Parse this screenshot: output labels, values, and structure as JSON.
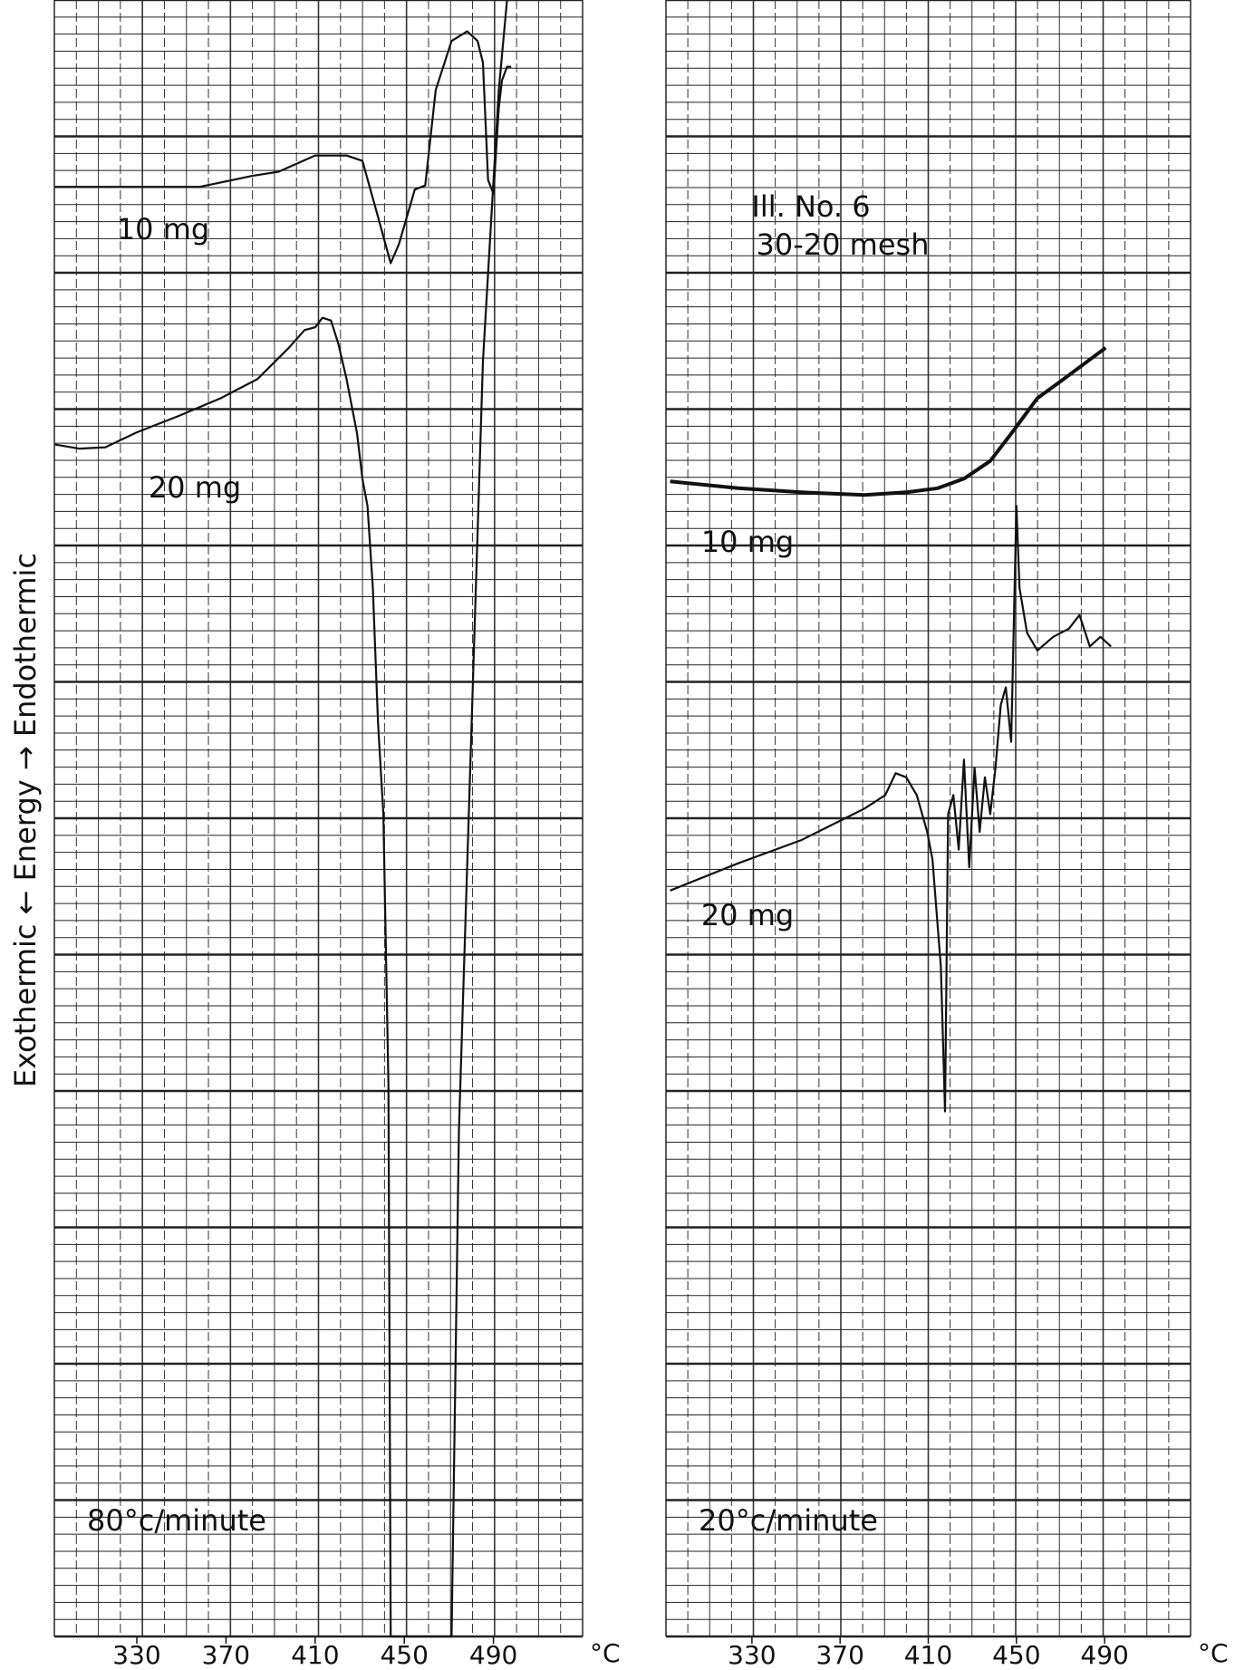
{
  "chart_data": [
    {
      "type": "line",
      "ylabel": "Exothermic ← Energy → Endothermic",
      "xlabel": "°C",
      "xlim": [
        293,
        530
      ],
      "xticks": [
        330,
        370,
        410,
        450,
        490
      ],
      "ylim": [
        0,
        12
      ],
      "annotations": [
        "80°c/minute"
      ],
      "series": [
        {
          "name": "10 mg",
          "color": "#111111",
          "x": [
            293.3,
            358.2,
            381.8,
            393.5,
            410,
            424.1,
            431.2,
            438.2,
            443.9,
            447.6,
            454.7,
            459.4,
            464.1,
            471.2,
            478.2,
            482.9,
            485.3,
            487.6,
            490,
            492.4,
            493.8,
            496.1,
            498
          ],
          "y": [
            10.63,
            10.63,
            10.71,
            10.74,
            10.86,
            10.86,
            10.82,
            10.41,
            10.07,
            10.21,
            10.61,
            10.64,
            11.34,
            11.7,
            11.77,
            11.7,
            11.54,
            10.68,
            10.58,
            11.21,
            11.41,
            11.51,
            11.51
          ]
        },
        {
          "name": "20 mg",
          "color": "#111111",
          "x": [
            293.3,
            304.1,
            315.9,
            330,
            348.8,
            367.6,
            384.1,
            398.2,
            405.3,
            410,
            413.3,
            417.1,
            420.4,
            424.1,
            428.8,
            431.2,
            433.5,
            435.9,
            438.2,
            440.6,
            442.9,
            443.9,
            471.2,
            474.5,
            485.3,
            492.4,
            496.1
          ],
          "y": [
            8.74,
            8.71,
            8.72,
            8.83,
            8.95,
            9.08,
            9.22,
            9.45,
            9.58,
            9.6,
            9.67,
            9.65,
            9.48,
            9.22,
            8.82,
            8.49,
            8.29,
            7.69,
            6.7,
            6.03,
            4.05,
            0,
            0,
            3.71,
            9.35,
            11.34,
            12
          ]
        }
      ]
    },
    {
      "type": "line",
      "xlabel": "°C",
      "xlim": [
        291,
        529
      ],
      "xticks": [
        330,
        370,
        410,
        450,
        490
      ],
      "ylim": [
        0,
        12
      ],
      "annotations": [
        "Ill. No. 6",
        "30-20 mesh",
        "20°c/minute"
      ],
      "series": [
        {
          "name": "10 mg",
          "color": "#111111",
          "x": [
            292.9,
            323.8,
            352.4,
            381,
            400,
            414.3,
            426.2,
            438.1,
            447.6,
            459.5,
            471.4,
            490.5
          ],
          "y": [
            8.47,
            8.42,
            8.39,
            8.37,
            8.39,
            8.42,
            8.49,
            8.62,
            8.82,
            9.08,
            9.22,
            9.45
          ]
        },
        {
          "name": "20 mg",
          "color": "#111111",
          "x": [
            292.9,
            323.8,
            352.4,
            381,
            390.5,
            395.2,
            400,
            404.8,
            409.5,
            411.9,
            415.7,
            417.6,
            419,
            421.4,
            423.8,
            426.2,
            428.6,
            431,
            433.3,
            435.7,
            438.1,
            440.5,
            442.9,
            445.2,
            447.6,
            450,
            451.4,
            454.8,
            459.5,
            466.7,
            473.8,
            478.6,
            483.3,
            488.1,
            492.9
          ],
          "y": [
            5.47,
            5.67,
            5.84,
            6.07,
            6.17,
            6.33,
            6.3,
            6.17,
            5.9,
            5.7,
            4.91,
            3.85,
            6.03,
            6.17,
            5.77,
            6.43,
            5.64,
            6.37,
            5.9,
            6.3,
            6.03,
            6.37,
            6.83,
            6.96,
            6.56,
            8.29,
            7.69,
            7.36,
            7.23,
            7.33,
            7.39,
            7.49,
            7.26,
            7.33,
            7.26
          ]
        }
      ]
    }
  ]
}
